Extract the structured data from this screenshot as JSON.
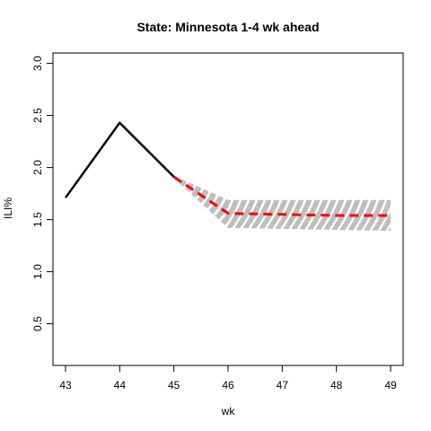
{
  "chart_data": {
    "type": "line",
    "title": "State: Minnesota 1-4 wk ahead",
    "xlabel": "wk",
    "ylabel": "ILI%",
    "xlim": [
      43,
      49
    ],
    "ylim": [
      0.1,
      3.1
    ],
    "x_ticks": [
      "43",
      "44",
      "45",
      "46",
      "47",
      "48",
      "49"
    ],
    "y_ticks": [
      "0.5",
      "1.0",
      "1.5",
      "2.0",
      "2.5",
      "3.0"
    ],
    "grid": false,
    "legend": "none",
    "colors": {
      "observed": "#000000",
      "forecast": "#ff0000",
      "samples": "#bebebe"
    },
    "series": [
      {
        "role": "observed",
        "x": [
          43,
          44,
          45
        ],
        "values": [
          1.71,
          2.43,
          1.91
        ]
      },
      {
        "role": "forecast",
        "x": [
          45,
          46,
          47,
          48,
          49
        ],
        "values": [
          1.91,
          1.56,
          1.55,
          1.54,
          1.54
        ]
      }
    ],
    "sample_band": {
      "x": [
        45,
        46,
        47,
        48,
        49
      ],
      "start_value": 1.91,
      "lower": [
        1.91,
        1.43,
        1.42,
        1.41,
        1.4
      ],
      "upper": [
        1.91,
        1.68,
        1.68,
        1.68,
        1.68
      ],
      "count": 20
    }
  }
}
